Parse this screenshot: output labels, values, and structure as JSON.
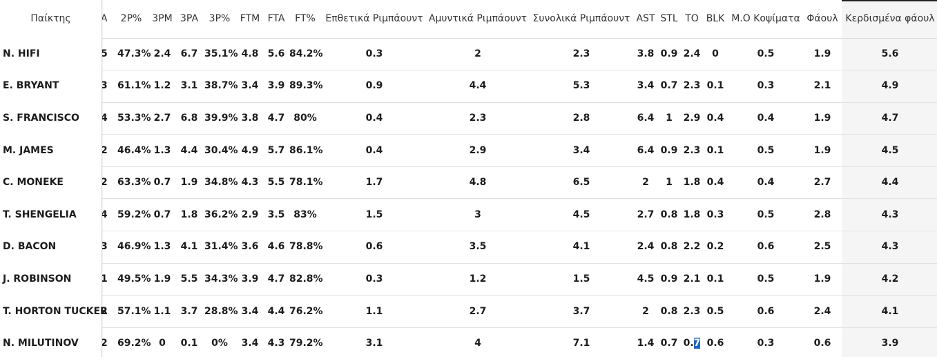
{
  "table": {
    "player_header": "Παίκτης",
    "headers": {
      "a": "A",
      "p2": "2P%",
      "m3": "3PM",
      "a3": "3PA",
      "p3": "3P%",
      "ftm": "FTM",
      "fta": "FTA",
      "ftp": "FT%",
      "oreb": "Επθετικά Ριμπάουντ",
      "dreb": "Αμυντικά Ριμπάουντ",
      "treb": "Συνολικά Ριμπάουντ",
      "ast": "AST",
      "stl": "STL",
      "to": "TO",
      "blk": "BLK",
      "mblk": "Μ.Ο Κοψίματα",
      "fouls": "Φάουλ",
      "fd": "Κερδισμένα φάουλ"
    },
    "rows": [
      {
        "name": "N. HIFI",
        "a": "5",
        "p2": "47.3%",
        "m3": "2.4",
        "a3": "6.7",
        "p3": "35.1%",
        "ftm": "4.8",
        "fta": "5.6",
        "ftp": "84.2%",
        "oreb": "0.3",
        "dreb": "2",
        "treb": "2.3",
        "ast": "3.8",
        "stl": "0.9",
        "to": "2.4",
        "blk": "0",
        "mblk": "0.5",
        "fouls": "1.9",
        "fd": "5.6"
      },
      {
        "name": "E. BRYANT",
        "a": "3",
        "p2": "61.1%",
        "m3": "1.2",
        "a3": "3.1",
        "p3": "38.7%",
        "ftm": "3.4",
        "fta": "3.9",
        "ftp": "89.3%",
        "oreb": "0.9",
        "dreb": "4.4",
        "treb": "5.3",
        "ast": "3.4",
        "stl": "0.7",
        "to": "2.3",
        "blk": "0.1",
        "mblk": "0.3",
        "fouls": "2.1",
        "fd": "4.9"
      },
      {
        "name": "S. FRANCISCO",
        "a": "4",
        "p2": "53.3%",
        "m3": "2.7",
        "a3": "6.8",
        "p3": "39.9%",
        "ftm": "3.8",
        "fta": "4.7",
        "ftp": "80%",
        "oreb": "0.4",
        "dreb": "2.3",
        "treb": "2.8",
        "ast": "6.4",
        "stl": "1",
        "to": "2.9",
        "blk": "0.4",
        "mblk": "0.4",
        "fouls": "1.9",
        "fd": "4.7"
      },
      {
        "name": "M. JAMES",
        "a": "2",
        "p2": "46.4%",
        "m3": "1.3",
        "a3": "4.4",
        "p3": "30.4%",
        "ftm": "4.9",
        "fta": "5.7",
        "ftp": "86.1%",
        "oreb": "0.4",
        "dreb": "2.9",
        "treb": "3.4",
        "ast": "6.4",
        "stl": "0.9",
        "to": "2.3",
        "blk": "0.1",
        "mblk": "0.5",
        "fouls": "1.9",
        "fd": "4.5"
      },
      {
        "name": "C. MONEKE",
        "a": "2",
        "p2": "63.3%",
        "m3": "0.7",
        "a3": "1.9",
        "p3": "34.8%",
        "ftm": "4.3",
        "fta": "5.5",
        "ftp": "78.1%",
        "oreb": "1.7",
        "dreb": "4.8",
        "treb": "6.5",
        "ast": "2",
        "stl": "1",
        "to": "1.8",
        "blk": "0.4",
        "mblk": "0.4",
        "fouls": "2.7",
        "fd": "4.4"
      },
      {
        "name": "T. SHENGELIA",
        "a": "4",
        "p2": "59.2%",
        "m3": "0.7",
        "a3": "1.8",
        "p3": "36.2%",
        "ftm": "2.9",
        "fta": "3.5",
        "ftp": "83%",
        "oreb": "1.5",
        "dreb": "3",
        "treb": "4.5",
        "ast": "2.7",
        "stl": "0.8",
        "to": "1.8",
        "blk": "0.3",
        "mblk": "0.5",
        "fouls": "2.8",
        "fd": "4.3"
      },
      {
        "name": "D. BACON",
        "a": "3",
        "p2": "46.9%",
        "m3": "1.3",
        "a3": "4.1",
        "p3": "31.4%",
        "ftm": "3.6",
        "fta": "4.6",
        "ftp": "78.8%",
        "oreb": "0.6",
        "dreb": "3.5",
        "treb": "4.1",
        "ast": "2.4",
        "stl": "0.8",
        "to": "2.2",
        "blk": "0.2",
        "mblk": "0.6",
        "fouls": "2.5",
        "fd": "4.3"
      },
      {
        "name": "J. ROBINSON",
        "a": "1",
        "p2": "49.5%",
        "m3": "1.9",
        "a3": "5.5",
        "p3": "34.3%",
        "ftm": "3.9",
        "fta": "4.7",
        "ftp": "82.8%",
        "oreb": "0.3",
        "dreb": "1.2",
        "treb": "1.5",
        "ast": "4.5",
        "stl": "0.9",
        "to": "2.1",
        "blk": "0.1",
        "mblk": "0.5",
        "fouls": "1.9",
        "fd": "4.2"
      },
      {
        "name": "T. HORTON TUCKER",
        "a": "2",
        "p2": "57.1%",
        "m3": "1.1",
        "a3": "3.7",
        "p3": "28.8%",
        "ftm": "3.4",
        "fta": "4.4",
        "ftp": "76.2%",
        "oreb": "1.1",
        "dreb": "2.7",
        "treb": "3.7",
        "ast": "2",
        "stl": "0.8",
        "to": "2.3",
        "blk": "0.5",
        "mblk": "0.6",
        "fouls": "2.4",
        "fd": "4.1"
      },
      {
        "name": "N. MILUTINOV",
        "a": "2",
        "p2": "69.2%",
        "m3": "0",
        "a3": "0.1",
        "p3": "0%",
        "ftm": "3.4",
        "fta": "4.3",
        "ftp": "79.2%",
        "oreb": "3.1",
        "dreb": "4",
        "treb": "7.1",
        "ast": "1.4",
        "stl": "0.7",
        "to": "0.7",
        "blk": "0.6",
        "mblk": "0.3",
        "fouls": "0.6",
        "fd": "3.9"
      }
    ]
  }
}
